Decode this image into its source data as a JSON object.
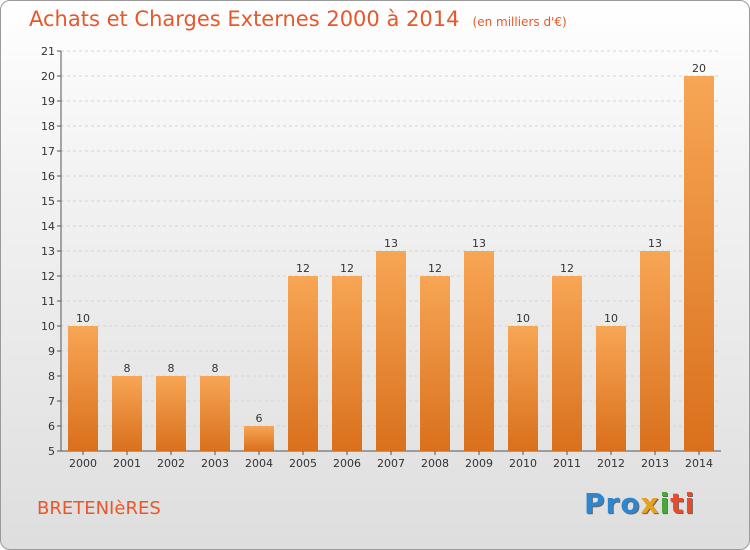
{
  "header": {
    "title": "Achats et Charges Externes 2000 à 2014",
    "subtitle": "(en milliers d'€)"
  },
  "footer": {
    "commune": "BRETENIèRES",
    "logo": [
      "Pro",
      "x",
      "i",
      "ti"
    ]
  },
  "colors": {
    "bar_light": "#f7a655",
    "bar_dark": "#d9701c",
    "title": "#e8572a",
    "grid": "#d4d4d4"
  },
  "chart_data": {
    "type": "bar",
    "categories": [
      "2000",
      "2001",
      "2002",
      "2003",
      "2004",
      "2005",
      "2006",
      "2007",
      "2008",
      "2009",
      "2010",
      "2011",
      "2012",
      "2013",
      "2014"
    ],
    "values": [
      10,
      8,
      8,
      8,
      6,
      12,
      12,
      13,
      12,
      13,
      10,
      12,
      10,
      13,
      20
    ],
    "title": "Achats et Charges Externes 2000 à 2014",
    "subtitle": "(en milliers d'€)",
    "ylim": [
      5,
      21
    ],
    "yticks": [
      5,
      6,
      7,
      8,
      9,
      10,
      11,
      12,
      13,
      14,
      15,
      16,
      17,
      18,
      19,
      20,
      21
    ],
    "grid": true,
    "legend": "none"
  }
}
